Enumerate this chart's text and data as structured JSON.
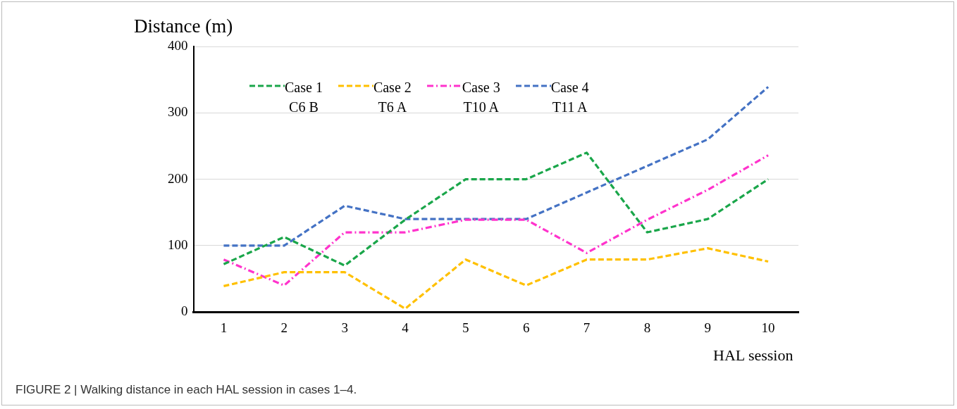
{
  "chart_data": {
    "type": "line",
    "xlabel": "HAL session",
    "ylabel": "Distance (m)",
    "categories": [
      "1",
      "2",
      "3",
      "4",
      "5",
      "6",
      "7",
      "8",
      "9",
      "10"
    ],
    "series": [
      {
        "name": "Case 1\nC6 B",
        "color": "#1aa64a",
        "line_style": "dashed",
        "values": [
          72,
          113,
          70,
          139,
          200,
          200,
          240,
          120,
          140,
          200
        ]
      },
      {
        "name": "Case 2\nT6 A",
        "color": "#ffc000",
        "line_style": "dashed",
        "values": [
          39,
          60,
          60,
          5,
          79,
          40,
          79,
          79,
          96,
          76
        ]
      },
      {
        "name": "Case 3\nT10 A",
        "color": "#ff33cc",
        "line_style": "dashdot",
        "values": [
          79,
          40,
          120,
          120,
          139,
          139,
          89,
          139,
          184,
          236
        ]
      },
      {
        "name": "Case 4\nT11 A",
        "color": "#4472c4",
        "line_style": "dashed",
        "values": [
          100,
          100,
          160,
          140,
          140,
          140,
          180,
          220,
          260,
          339
        ]
      }
    ],
    "ylim": [
      0,
      400
    ],
    "yticks": [
      0,
      100,
      200,
      300,
      400
    ],
    "grid": "y",
    "legend": "top left",
    "marker": "none",
    "annotations": [
      "FIGURE 2 | Walking distance in each HAL session in cases 1–4."
    ]
  }
}
